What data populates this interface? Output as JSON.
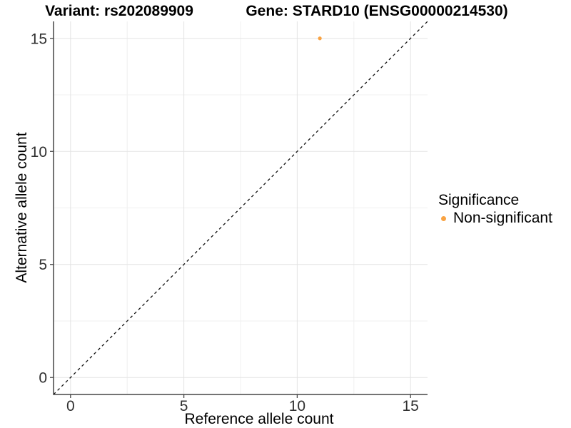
{
  "titles": {
    "left": "Variant: rs202089909",
    "right": "Gene: STARD10 (ENSG00000214530)"
  },
  "colors": {
    "point": "#F9A343",
    "axis_line": "#454545",
    "grid_major": "#e3e3e3",
    "grid_minor": "#f0f0f0",
    "reference_line": "#111111",
    "tick_text": "#303030"
  },
  "chart_data": {
    "type": "scatter",
    "title_left": "Variant: rs202089909",
    "title_right": "Gene: STARD10 (ENSG00000214530)",
    "xlabel": "Reference allele count",
    "ylabel": "Alternative allele count",
    "xlim": [
      -0.75,
      15.75
    ],
    "ylim": [
      -0.75,
      15.75
    ],
    "x_ticks": [
      0,
      5,
      10,
      15
    ],
    "y_ticks": [
      0,
      5,
      10,
      15
    ],
    "x_minor_ticks": [
      2.5,
      7.5,
      12.5
    ],
    "y_minor_ticks": [
      2.5,
      7.5,
      12.5
    ],
    "grid": "major+minor",
    "legend": {
      "title": "Significance",
      "position": "right",
      "items": [
        {
          "label": "Non-significant",
          "color": "#F9A343"
        }
      ]
    },
    "series": [
      {
        "name": "Non-significant",
        "color": "#F9A343",
        "points": [
          {
            "x": 11,
            "y": 15
          }
        ]
      }
    ],
    "reference_line": {
      "slope": 1,
      "intercept": 0,
      "style": "dashed",
      "color": "#111111"
    }
  }
}
